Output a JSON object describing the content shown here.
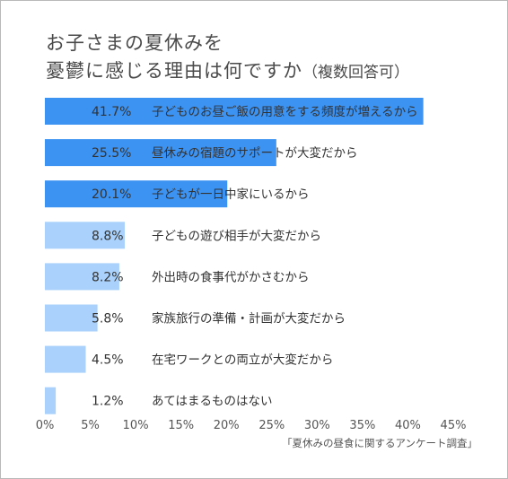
{
  "chart_data": {
    "type": "bar",
    "orientation": "horizontal",
    "title_line1": "お子さまの夏休みを",
    "title_line2": "憂鬱に感じる理由は何ですか",
    "title_note": "（複数回答可）",
    "categories": [
      "子どものお昼ご飯の用意をする頻度が増えるから",
      "昼休みの宿題のサポートが大変だから",
      "子どもが一日中家にいるから",
      "子どもの遊び相手が大変だから",
      "外出時の食事代がかさむから",
      "家族旅行の準備・計画が大変だから",
      "在宅ワークとの両立が大変だから",
      "あてはまるものはない"
    ],
    "values": [
      41.7,
      25.5,
      20.1,
      8.8,
      8.2,
      5.8,
      4.5,
      1.2
    ],
    "value_labels": [
      "41.7%",
      "25.5%",
      "20.1%",
      "8.8%",
      "8.2%",
      "5.8%",
      "4.5%",
      "1.2%"
    ],
    "xlim": [
      0,
      45
    ],
    "xticks": [
      "0%",
      "5%",
      "10%",
      "15%",
      "20%",
      "25%",
      "30%",
      "35%",
      "40%",
      "45%"
    ],
    "grid": false,
    "colors": {
      "top3": "#3d93f2",
      "rest": "#a9d1fb",
      "text": "#333333"
    },
    "source": "「夏休みの昼食に関するアンケート調査」"
  }
}
